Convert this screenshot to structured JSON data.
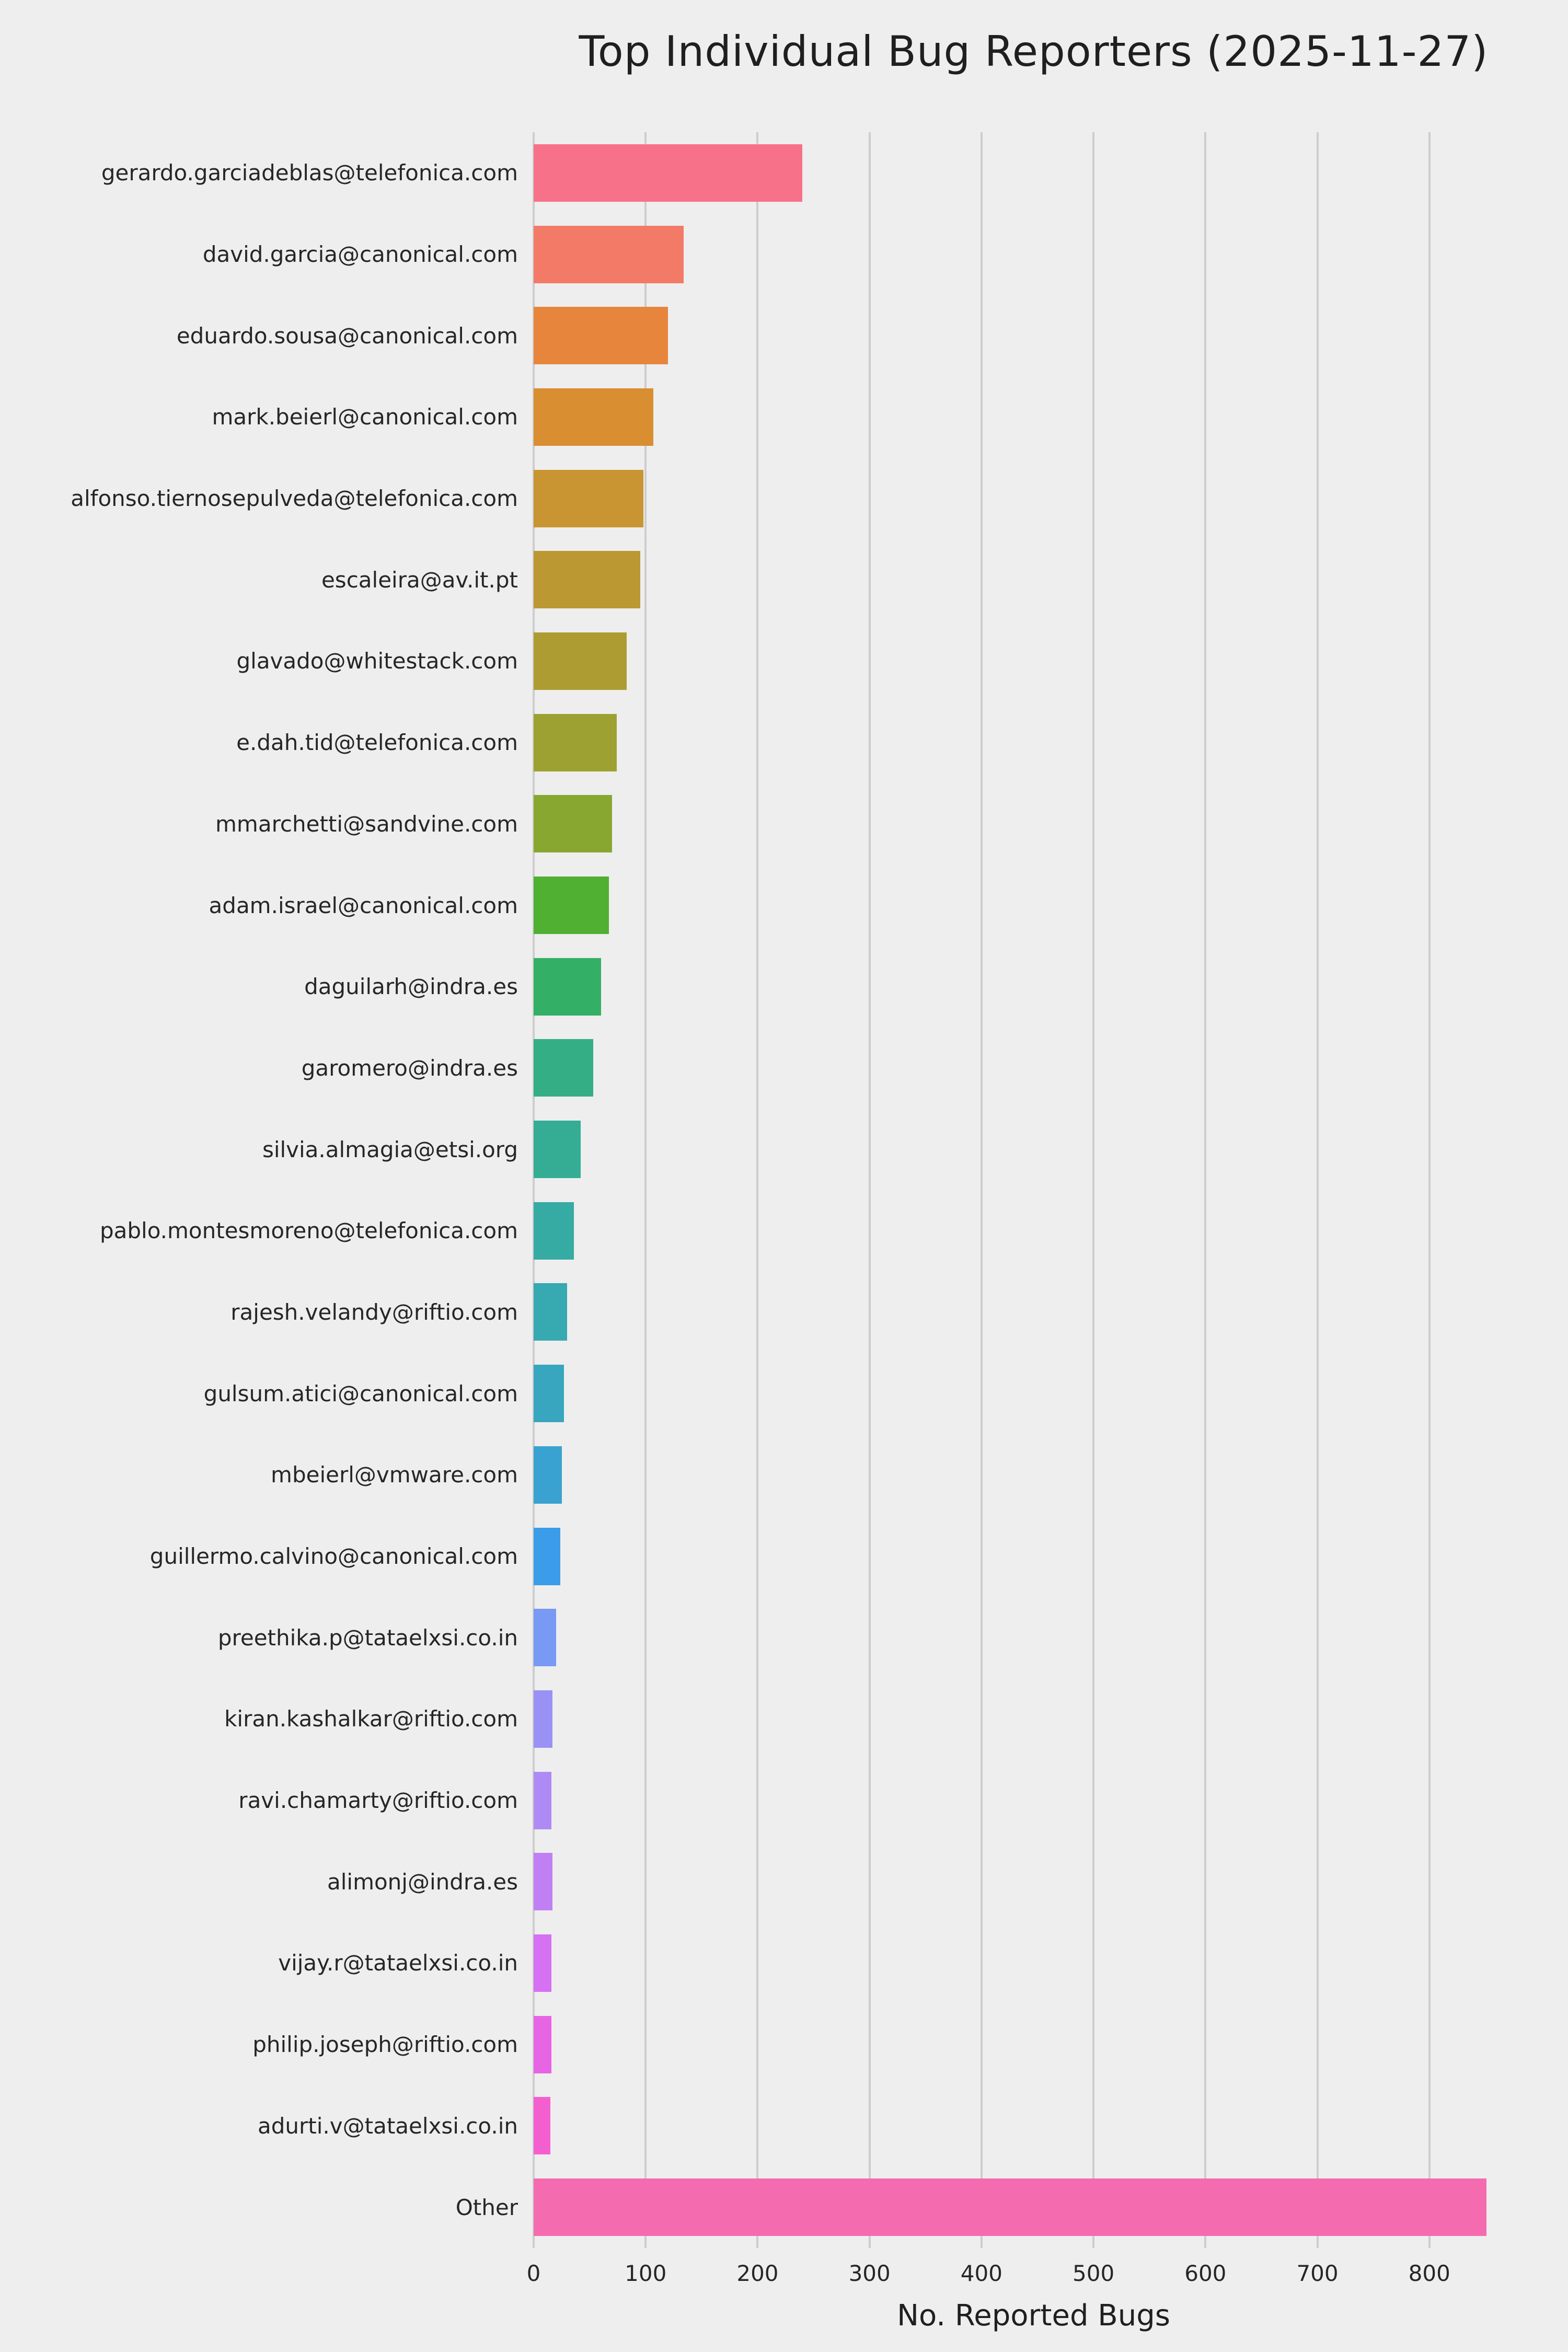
{
  "chart_data": {
    "type": "bar",
    "orientation": "horizontal",
    "title": "Top Individual Bug Reporters (2025-11-27)",
    "xlabel": "No. Reported Bugs",
    "ylabel": "",
    "categories": [
      "gerardo.garciadeblas@telefonica.com",
      "david.garcia@canonical.com",
      "eduardo.sousa@canonical.com",
      "mark.beierl@canonical.com",
      "alfonso.tiernosepulveda@telefonica.com",
      "escaleira@av.it.pt",
      "glavado@whitestack.com",
      "e.dah.tid@telefonica.com",
      "mmarchetti@sandvine.com",
      "adam.israel@canonical.com",
      "daguilarh@indra.es",
      "garomero@indra.es",
      "silvia.almagia@etsi.org",
      "pablo.montesmoreno@telefonica.com",
      "rajesh.velandy@riftio.com",
      "gulsum.atici@canonical.com",
      "mbeierl@vmware.com",
      "guillermo.calvino@canonical.com",
      "preethika.p@tataelxsi.co.in",
      "kiran.kashalkar@riftio.com",
      "ravi.chamarty@riftio.com",
      "alimonj@indra.es",
      "vijay.r@tataelxsi.co.in",
      "philip.joseph@riftio.com",
      "adurti.v@tataelxsi.co.in",
      "Other"
    ],
    "values": [
      240,
      134,
      120,
      107,
      98,
      95,
      83,
      74,
      70,
      67,
      60,
      53,
      42,
      36,
      30,
      27,
      25,
      24,
      20,
      17,
      16,
      17,
      16,
      16,
      15,
      851
    ],
    "xlim": [
      0,
      893
    ],
    "ticks": [
      0,
      100,
      200,
      300,
      400,
      500,
      600,
      700,
      800
    ],
    "grid": "vertical",
    "background_color": "#eeeeee",
    "gridline_color": "#cdcdcd",
    "palette": [
      "#f77189",
      "#f27a67",
      "#e7853d",
      "#d98e32",
      "#c99432",
      "#bb9832",
      "#ad9c32",
      "#9da131",
      "#87a731",
      "#4fb031",
      "#33b065",
      "#34af85",
      "#35ad95",
      "#36aba3",
      "#37a9b0",
      "#38a6be",
      "#3aa2d0",
      "#3b9ce9",
      "#7899f4",
      "#9a91f4",
      "#ae8bf4",
      "#c17ff4",
      "#d571f2",
      "#e765e5",
      "#f45fd0",
      "#f56bb0"
    ]
  }
}
